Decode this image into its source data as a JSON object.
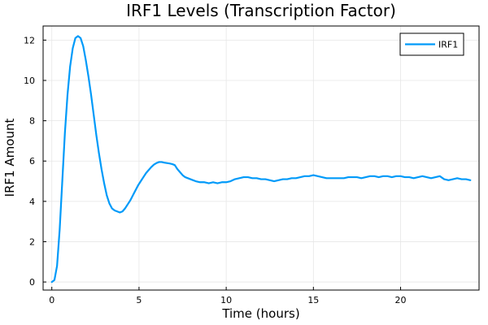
{
  "chart_data": {
    "type": "line",
    "title": "IRF1 Levels (Transcription Factor)",
    "xlabel": "Time (hours)",
    "ylabel": "IRF1 Amount",
    "xlim": [
      -0.5,
      24.5
    ],
    "ylim": [
      -0.4,
      12.7
    ],
    "xticks": [
      0,
      5,
      10,
      15,
      20
    ],
    "xtick_labels": [
      "0",
      "5",
      "10",
      "15",
      "20"
    ],
    "yticks": [
      0,
      2,
      4,
      6,
      8,
      10,
      12
    ],
    "ytick_labels": [
      "0",
      "2",
      "4",
      "6",
      "8",
      "10",
      "12"
    ],
    "grid": true,
    "legend": {
      "position": "top-right",
      "entries": [
        "IRF1"
      ]
    },
    "series": [
      {
        "name": "IRF1",
        "color": "#009af9",
        "x": [
          0,
          0.15,
          0.3,
          0.45,
          0.6,
          0.75,
          0.9,
          1.05,
          1.2,
          1.35,
          1.5,
          1.65,
          1.8,
          1.95,
          2.1,
          2.25,
          2.4,
          2.55,
          2.7,
          2.85,
          3.0,
          3.15,
          3.3,
          3.45,
          3.6,
          3.75,
          3.9,
          4.05,
          4.2,
          4.35,
          4.5,
          4.65,
          4.8,
          4.95,
          5.1,
          5.25,
          5.4,
          5.55,
          5.7,
          5.85,
          6.0,
          6.15,
          6.3,
          6.45,
          6.6,
          6.75,
          6.9,
          7.05,
          7.2,
          7.35,
          7.5,
          7.65,
          7.8,
          7.95,
          8.1,
          8.25,
          8.5,
          8.75,
          9.0,
          9.25,
          9.5,
          9.75,
          10.0,
          10.25,
          10.5,
          10.75,
          11.0,
          11.25,
          11.5,
          11.75,
          12.0,
          12.25,
          12.5,
          12.75,
          13.0,
          13.25,
          13.5,
          13.75,
          14.0,
          14.25,
          14.5,
          14.75,
          15.0,
          15.25,
          15.5,
          15.75,
          16.0,
          16.25,
          16.5,
          16.75,
          17.0,
          17.25,
          17.5,
          17.75,
          18.0,
          18.25,
          18.5,
          18.75,
          19.0,
          19.25,
          19.5,
          19.75,
          20.0,
          20.25,
          20.5,
          20.75,
          21.0,
          21.25,
          21.5,
          21.75,
          22.0,
          22.25,
          22.5,
          22.75,
          23.0,
          23.25,
          23.5,
          23.75,
          24.0
        ],
        "y": [
          0.0,
          0.1,
          0.8,
          2.6,
          5.0,
          7.4,
          9.3,
          10.7,
          11.6,
          12.1,
          12.2,
          12.1,
          11.7,
          11.0,
          10.2,
          9.3,
          8.3,
          7.3,
          6.4,
          5.6,
          4.9,
          4.3,
          3.9,
          3.65,
          3.55,
          3.5,
          3.45,
          3.5,
          3.65,
          3.85,
          4.05,
          4.3,
          4.55,
          4.8,
          5.0,
          5.2,
          5.4,
          5.55,
          5.7,
          5.82,
          5.9,
          5.95,
          5.95,
          5.92,
          5.9,
          5.88,
          5.85,
          5.8,
          5.6,
          5.45,
          5.3,
          5.2,
          5.15,
          5.1,
          5.05,
          5.0,
          4.95,
          4.95,
          4.9,
          4.95,
          4.9,
          4.95,
          4.95,
          5.0,
          5.1,
          5.15,
          5.2,
          5.2,
          5.15,
          5.15,
          5.1,
          5.1,
          5.05,
          5.0,
          5.05,
          5.1,
          5.1,
          5.15,
          5.15,
          5.2,
          5.25,
          5.25,
          5.3,
          5.25,
          5.2,
          5.15,
          5.15,
          5.15,
          5.15,
          5.15,
          5.2,
          5.2,
          5.2,
          5.15,
          5.2,
          5.25,
          5.25,
          5.2,
          5.25,
          5.25,
          5.2,
          5.25,
          5.25,
          5.2,
          5.2,
          5.15,
          5.2,
          5.25,
          5.2,
          5.15,
          5.2,
          5.25,
          5.1,
          5.05,
          5.1,
          5.15,
          5.1,
          5.1,
          5.05
        ]
      }
    ]
  }
}
